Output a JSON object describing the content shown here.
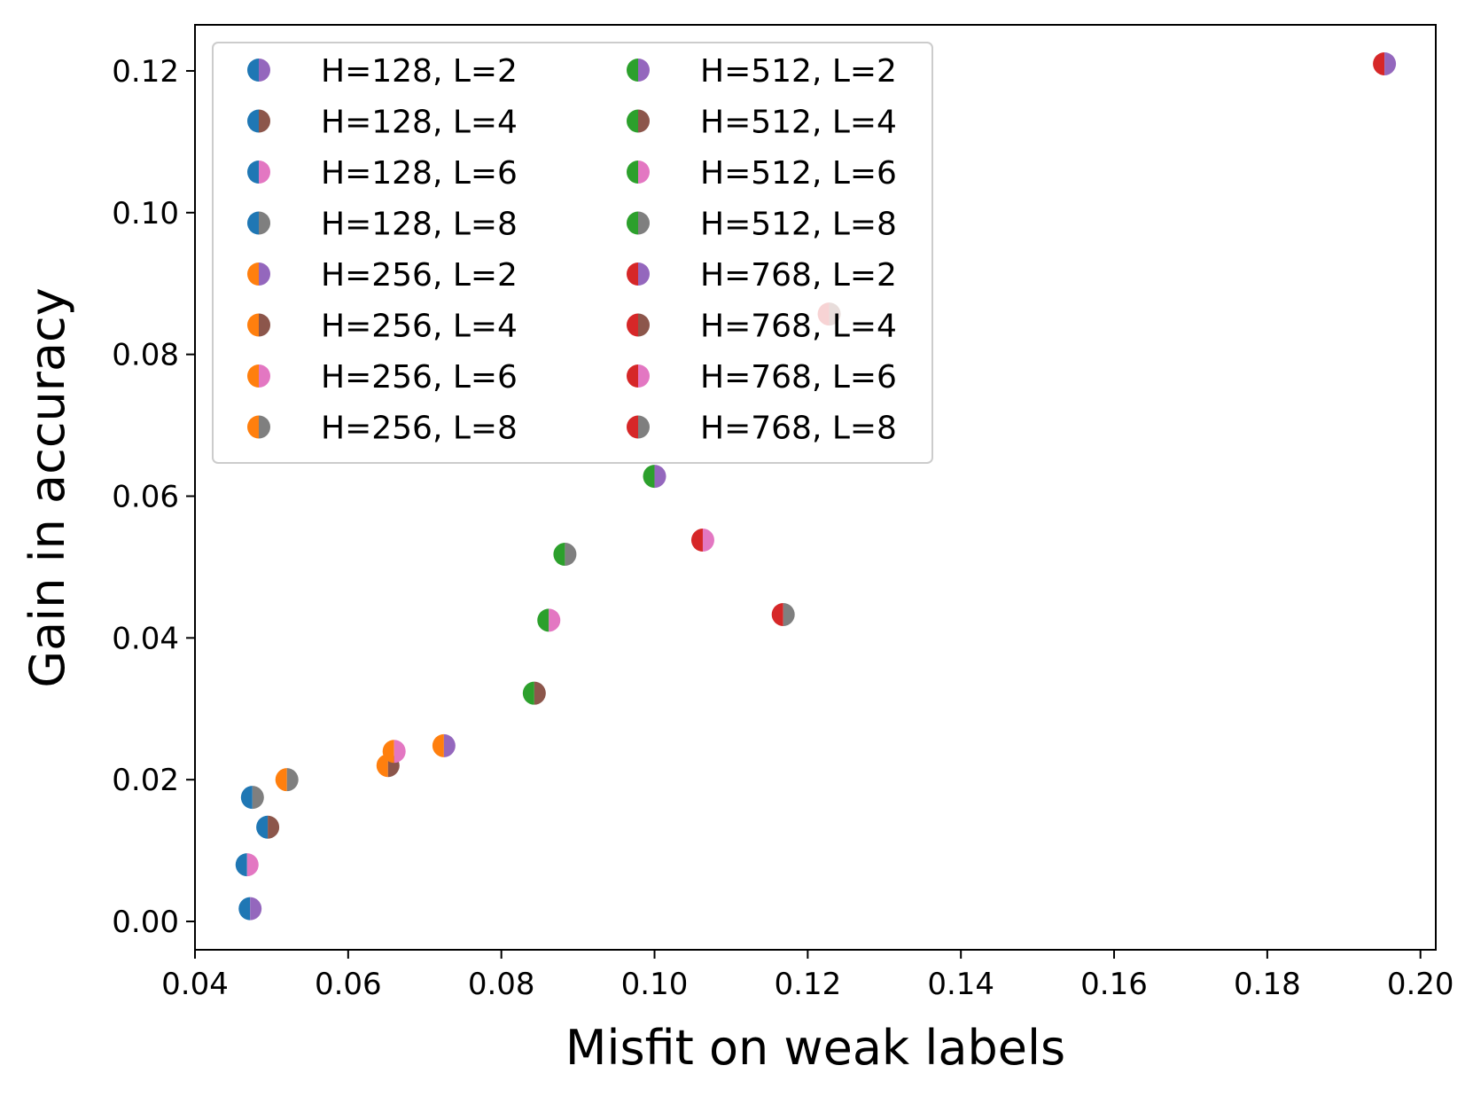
{
  "chart_data": {
    "type": "scatter",
    "title": "",
    "xlabel": "Misfit on weak labels",
    "ylabel": "Gain in accuracy",
    "xlim": [
      0.04,
      0.202
    ],
    "ylim": [
      -0.004,
      0.1265
    ],
    "xticks": [
      0.04,
      0.06,
      0.08,
      0.1,
      0.12,
      0.14,
      0.16,
      0.18,
      0.2
    ],
    "xtick_labels": [
      "0.04",
      "0.06",
      "0.08",
      "0.10",
      "0.12",
      "0.14",
      "0.16",
      "0.18",
      "0.20"
    ],
    "yticks": [
      0.0,
      0.02,
      0.04,
      0.06,
      0.08,
      0.1,
      0.12
    ],
    "ytick_labels": [
      "0.00",
      "0.02",
      "0.04",
      "0.06",
      "0.08",
      "0.10",
      "0.12"
    ],
    "grid": false,
    "legend_position": "top-left",
    "legend_columns": 2,
    "colors": {
      "H128": "#1f77b4",
      "H256": "#ff7f0e",
      "H512": "#2ca02c",
      "H768": "#d62728",
      "L2": "#9467bd",
      "L4": "#8c564b",
      "L6": "#e377c2",
      "L8": "#7f7f7f"
    },
    "series": [
      {
        "name": "H=128, L=2",
        "H": 128,
        "L": 2,
        "x": 0.0472,
        "y": 0.0018
      },
      {
        "name": "H=128, L=4",
        "H": 128,
        "L": 4,
        "x": 0.0495,
        "y": 0.0133
      },
      {
        "name": "H=128, L=6",
        "H": 128,
        "L": 6,
        "x": 0.0468,
        "y": 0.008
      },
      {
        "name": "H=128, L=8",
        "H": 128,
        "L": 8,
        "x": 0.0475,
        "y": 0.0175
      },
      {
        "name": "H=256, L=2",
        "H": 256,
        "L": 2,
        "x": 0.0725,
        "y": 0.0248
      },
      {
        "name": "H=256, L=4",
        "H": 256,
        "L": 4,
        "x": 0.0652,
        "y": 0.022
      },
      {
        "name": "H=256, L=6",
        "H": 256,
        "L": 6,
        "x": 0.066,
        "y": 0.024
      },
      {
        "name": "H=256, L=8",
        "H": 256,
        "L": 8,
        "x": 0.052,
        "y": 0.02
      },
      {
        "name": "H=512, L=2",
        "H": 512,
        "L": 2,
        "x": 0.1,
        "y": 0.0628
      },
      {
        "name": "H=512, L=4",
        "H": 512,
        "L": 4,
        "x": 0.0843,
        "y": 0.0322
      },
      {
        "name": "H=512, L=6",
        "H": 512,
        "L": 6,
        "x": 0.0862,
        "y": 0.0425
      },
      {
        "name": "H=512, L=8",
        "H": 512,
        "L": 8,
        "x": 0.0883,
        "y": 0.0518
      },
      {
        "name": "H=768, L=2",
        "H": 768,
        "L": 2,
        "x": 0.1953,
        "y": 0.121
      },
      {
        "name": "H=768, L=4",
        "H": 768,
        "L": 4,
        "x": 0.1228,
        "y": 0.0857
      },
      {
        "name": "H=768, L=6",
        "H": 768,
        "L": 6,
        "x": 0.1063,
        "y": 0.0538
      },
      {
        "name": "H=768, L=8",
        "H": 768,
        "L": 8,
        "x": 0.1168,
        "y": 0.0433
      }
    ]
  }
}
